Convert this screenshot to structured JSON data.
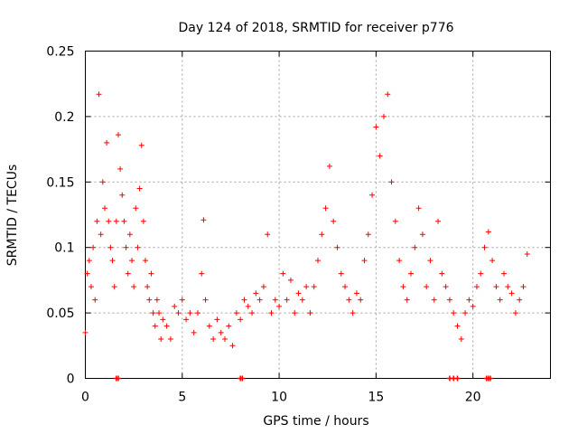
{
  "chart_data": {
    "type": "scatter",
    "title": "Day 124 of 2018, SRMTID for receiver p776",
    "xlabel": "GPS time / hours",
    "ylabel": "SRMTID / TECUs",
    "xlim": [
      0,
      24
    ],
    "ylim": [
      0,
      0.25
    ],
    "xticks": [
      0,
      5,
      10,
      15,
      20
    ],
    "xtick_labels": [
      "0",
      "5",
      "10",
      "15",
      "20"
    ],
    "yticks": [
      0,
      0.05,
      0.1,
      0.15,
      0.2,
      0.25
    ],
    "ytick_labels": [
      "0",
      "0.05",
      "0.1",
      "0.15",
      "0.2",
      "0.25"
    ],
    "grid": true,
    "marker": "plus",
    "series": [
      {
        "name": "SRMTID",
        "color": "#ff0000",
        "points": [
          [
            0.0,
            0.035
          ],
          [
            0.1,
            0.08
          ],
          [
            0.2,
            0.09
          ],
          [
            0.3,
            0.07
          ],
          [
            0.4,
            0.1
          ],
          [
            0.5,
            0.06
          ],
          [
            0.6,
            0.12
          ],
          [
            0.7,
            0.217
          ],
          [
            0.8,
            0.11
          ],
          [
            0.9,
            0.15
          ],
          [
            1.0,
            0.13
          ],
          [
            1.1,
            0.18
          ],
          [
            1.2,
            0.12
          ],
          [
            1.3,
            0.1
          ],
          [
            1.4,
            0.09
          ],
          [
            1.5,
            0.07
          ],
          [
            1.6,
            0.12
          ],
          [
            1.7,
            0.186
          ],
          [
            1.8,
            0.16
          ],
          [
            1.9,
            0.14
          ],
          [
            2.0,
            0.12
          ],
          [
            2.1,
            0.1
          ],
          [
            2.2,
            0.08
          ],
          [
            2.3,
            0.11
          ],
          [
            2.4,
            0.09
          ],
          [
            2.5,
            0.07
          ],
          [
            2.6,
            0.13
          ],
          [
            2.7,
            0.1
          ],
          [
            2.8,
            0.145
          ],
          [
            2.9,
            0.178
          ],
          [
            3.0,
            0.12
          ],
          [
            3.1,
            0.09
          ],
          [
            3.2,
            0.07
          ],
          [
            3.3,
            0.06
          ],
          [
            3.4,
            0.08
          ],
          [
            3.5,
            0.05
          ],
          [
            3.6,
            0.04
          ],
          [
            3.7,
            0.06
          ],
          [
            3.8,
            0.05
          ],
          [
            3.9,
            0.03
          ],
          [
            4.0,
            0.045
          ],
          [
            4.2,
            0.04
          ],
          [
            4.4,
            0.03
          ],
          [
            4.6,
            0.055
          ],
          [
            4.8,
            0.05
          ],
          [
            5.0,
            0.06
          ],
          [
            5.2,
            0.045
          ],
          [
            5.4,
            0.05
          ],
          [
            5.6,
            0.035
          ],
          [
            5.8,
            0.05
          ],
          [
            6.0,
            0.08
          ],
          [
            6.1,
            0.121
          ],
          [
            6.2,
            0.06
          ],
          [
            6.4,
            0.04
          ],
          [
            6.6,
            0.03
          ],
          [
            6.8,
            0.045
          ],
          [
            7.0,
            0.035
          ],
          [
            7.2,
            0.03
          ],
          [
            7.4,
            0.04
          ],
          [
            7.6,
            0.025
          ],
          [
            7.8,
            0.05
          ],
          [
            8.0,
            0.045
          ],
          [
            8.2,
            0.06
          ],
          [
            8.4,
            0.055
          ],
          [
            8.6,
            0.05
          ],
          [
            8.8,
            0.065
          ],
          [
            9.0,
            0.06
          ],
          [
            9.2,
            0.07
          ],
          [
            9.4,
            0.11
          ],
          [
            9.6,
            0.05
          ],
          [
            9.8,
            0.06
          ],
          [
            10.0,
            0.055
          ],
          [
            10.2,
            0.08
          ],
          [
            10.4,
            0.06
          ],
          [
            10.6,
            0.075
          ],
          [
            10.8,
            0.05
          ],
          [
            11.0,
            0.065
          ],
          [
            11.2,
            0.06
          ],
          [
            11.4,
            0.07
          ],
          [
            11.6,
            0.05
          ],
          [
            11.8,
            0.07
          ],
          [
            12.0,
            0.09
          ],
          [
            12.2,
            0.11
          ],
          [
            12.4,
            0.13
          ],
          [
            12.6,
            0.162
          ],
          [
            12.8,
            0.12
          ],
          [
            13.0,
            0.1
          ],
          [
            13.2,
            0.08
          ],
          [
            13.4,
            0.07
          ],
          [
            13.6,
            0.06
          ],
          [
            13.8,
            0.05
          ],
          [
            14.0,
            0.065
          ],
          [
            14.2,
            0.06
          ],
          [
            14.4,
            0.09
          ],
          [
            14.6,
            0.11
          ],
          [
            14.8,
            0.14
          ],
          [
            15.0,
            0.192
          ],
          [
            15.2,
            0.17
          ],
          [
            15.4,
            0.2
          ],
          [
            15.6,
            0.217
          ],
          [
            15.8,
            0.15
          ],
          [
            16.0,
            0.12
          ],
          [
            16.2,
            0.09
          ],
          [
            16.4,
            0.07
          ],
          [
            16.6,
            0.06
          ],
          [
            16.8,
            0.08
          ],
          [
            17.0,
            0.1
          ],
          [
            17.2,
            0.13
          ],
          [
            17.4,
            0.11
          ],
          [
            17.6,
            0.07
          ],
          [
            17.8,
            0.09
          ],
          [
            18.0,
            0.06
          ],
          [
            18.2,
            0.12
          ],
          [
            18.4,
            0.08
          ],
          [
            18.6,
            0.07
          ],
          [
            18.8,
            0.06
          ],
          [
            19.0,
            0.05
          ],
          [
            19.2,
            0.04
          ],
          [
            19.4,
            0.03
          ],
          [
            19.6,
            0.05
          ],
          [
            19.8,
            0.06
          ],
          [
            20.0,
            0.055
          ],
          [
            20.2,
            0.07
          ],
          [
            20.4,
            0.08
          ],
          [
            20.6,
            0.1
          ],
          [
            20.8,
            0.112
          ],
          [
            21.0,
            0.09
          ],
          [
            21.2,
            0.07
          ],
          [
            21.4,
            0.06
          ],
          [
            21.6,
            0.08
          ],
          [
            21.8,
            0.07
          ],
          [
            22.0,
            0.065
          ],
          [
            22.2,
            0.05
          ],
          [
            22.4,
            0.06
          ],
          [
            22.6,
            0.07
          ],
          [
            22.8,
            0.095
          ]
        ],
        "zero_points": [
          1.6,
          1.7,
          8.0,
          8.1,
          18.8,
          19.0,
          19.2,
          20.7,
          20.8,
          20.9
        ]
      }
    ]
  }
}
